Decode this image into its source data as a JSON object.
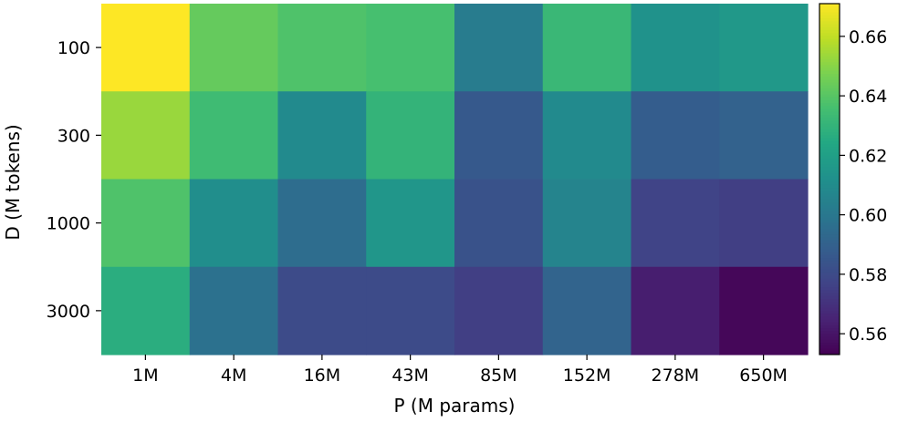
{
  "chart_data": {
    "type": "heatmap",
    "title": "",
    "xlabel": "P (M params)",
    "ylabel": "D (M tokens)",
    "x_categories": [
      "1M",
      "4M",
      "16M",
      "43M",
      "85M",
      "152M",
      "278M",
      "650M"
    ],
    "y_categories": [
      "100",
      "300",
      "1000",
      "3000"
    ],
    "values": [
      [
        0.671,
        0.643,
        0.638,
        0.636,
        0.602,
        0.632,
        0.613,
        0.616
      ],
      [
        0.653,
        0.634,
        0.609,
        0.63,
        0.586,
        0.609,
        0.588,
        0.59
      ],
      [
        0.638,
        0.611,
        0.595,
        0.615,
        0.583,
        0.606,
        0.577,
        0.575
      ],
      [
        0.627,
        0.597,
        0.58,
        0.58,
        0.575,
        0.591,
        0.563,
        0.555
      ]
    ],
    "colormap": "viridis",
    "colorbar": {
      "vmin": 0.553,
      "vmax": 0.671,
      "ticks": [
        0.56,
        0.58,
        0.6,
        0.62,
        0.64,
        0.66
      ],
      "tick_labels": [
        "0.56",
        "0.58",
        "0.60",
        "0.62",
        "0.64",
        "0.66"
      ]
    }
  }
}
